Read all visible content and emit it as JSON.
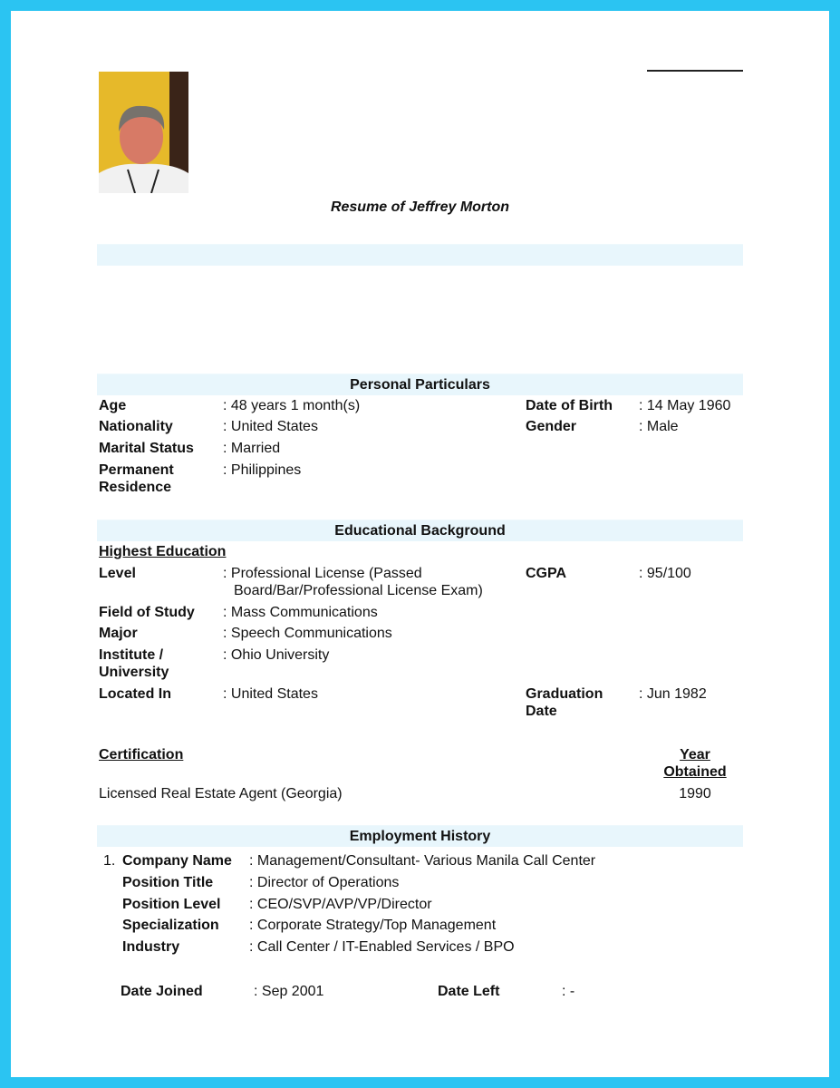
{
  "title": "Resume of Jeffrey Morton",
  "personal": {
    "heading": "Personal Particulars",
    "age_label": "Age",
    "age": ": 48 years 1 month(s)",
    "dob_label": "Date of Birth",
    "dob": ": 14 May 1960",
    "nationality_label": "Nationality",
    "nationality": ": United States",
    "gender_label": "Gender",
    "gender": ": Male",
    "marital_label": "Marital Status",
    "marital": ": Married",
    "residence_label_1": "Permanent",
    "residence_label_2": "Residence",
    "residence": ": Philippines"
  },
  "education": {
    "heading": "Educational Background",
    "highest": "Highest Education",
    "level_label": "Level",
    "level_1": ": Professional License (Passed",
    "level_2": "Board/Bar/Professional License Exam)",
    "cgpa_label": "CGPA",
    "cgpa": ": 95/100",
    "field_label": "Field of Study",
    "field": ": Mass Communications",
    "major_label": "Major",
    "major": ": Speech Communications",
    "institute_label_1": "Institute /",
    "institute_label_2": "University",
    "institute": ": Ohio University",
    "located_label": "Located In",
    "located": ": United States",
    "grad_label_1": "Graduation",
    "grad_label_2": "Date",
    "grad": ": Jun  1982",
    "cert_heading": "Certification",
    "year_heading_1": "Year",
    "year_heading_2": "Obtained",
    "cert": "Licensed Real Estate Agent (Georgia)",
    "cert_year": "1990"
  },
  "employment": {
    "heading": "Employment History",
    "number": "1.",
    "company_label": "Company Name",
    "company": ": Management/Consultant- Various Manila Call Center",
    "title_label": "Position Title",
    "title": ": Director of Operations",
    "level_label": "Position Level",
    "level": ": CEO/SVP/AVP/VP/Director",
    "spec_label": "Specialization",
    "spec": ": Corporate Strategy/Top Management",
    "industry_label": "Industry",
    "industry": ": Call Center / IT-Enabled Services / BPO",
    "joined_label": "Date Joined",
    "joined": ": Sep 2001",
    "left_label": "Date Left",
    "left": ": -"
  },
  "colors": {
    "border": "#2bc4f2",
    "band": "#e8f6fc"
  }
}
